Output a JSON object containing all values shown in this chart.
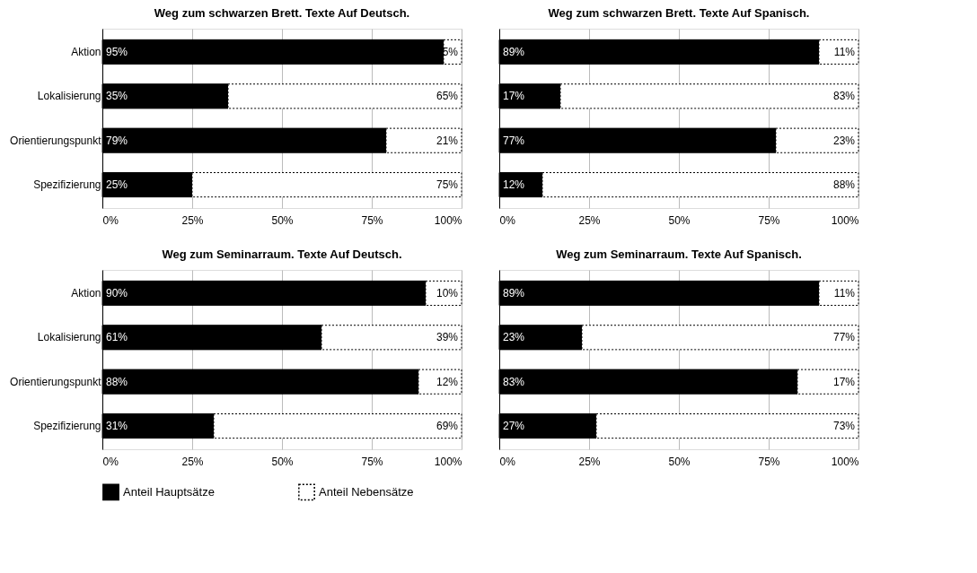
{
  "chart_data": [
    {
      "type": "bar",
      "title": "Weg zum schwarzen Brett. Texte Auf Deutsch.",
      "orientation": "horizontal",
      "stacked": true,
      "categories": [
        "Aktion",
        "Lokalisierung",
        "Orientierungspunkt",
        "Spezifizierung"
      ],
      "series": [
        {
          "name": "Anteil Hauptsätze",
          "color": "#000000",
          "values": [
            95,
            35,
            79,
            25
          ],
          "value_labels": [
            "95%",
            "35%",
            "79%",
            "25%"
          ]
        },
        {
          "name": "Anteil Nebensätze",
          "color": "#ffffff",
          "values": [
            5,
            65,
            21,
            75
          ],
          "value_labels": [
            "5%",
            "65%",
            "21%",
            "75%"
          ]
        }
      ],
      "xlim": [
        0,
        100
      ],
      "xticks": [
        {
          "value": 0,
          "label": "0%"
        },
        {
          "value": 25,
          "label": "25%"
        },
        {
          "value": 50,
          "label": "50%"
        },
        {
          "value": 75,
          "label": "75%"
        },
        {
          "value": 100,
          "label": "100%"
        }
      ],
      "grid": "x",
      "legend": "bottom"
    },
    {
      "type": "bar",
      "title": "Weg zum schwarzen Brett. Texte Auf Spanisch.",
      "orientation": "horizontal",
      "stacked": true,
      "categories": [
        "Aktion",
        "Lokalisierung",
        "Orientierungspunkt",
        "Spezifizierung"
      ],
      "series": [
        {
          "name": "Anteil Hauptsätze",
          "color": "#000000",
          "values": [
            89,
            17,
            77,
            12
          ],
          "value_labels": [
            "89%",
            "17%",
            "77%",
            "12%"
          ]
        },
        {
          "name": "Anteil Nebensätze",
          "color": "#ffffff",
          "values": [
            11,
            83,
            23,
            88
          ],
          "value_labels": [
            "11%",
            "83%",
            "23%",
            "88%"
          ]
        }
      ],
      "xlim": [
        0,
        100
      ],
      "xticks": [
        {
          "value": 0,
          "label": "0%"
        },
        {
          "value": 25,
          "label": "25%"
        },
        {
          "value": 50,
          "label": "50%"
        },
        {
          "value": 75,
          "label": "75%"
        },
        {
          "value": 100,
          "label": "100%"
        }
      ],
      "grid": "x",
      "legend": "bottom",
      "tick_labels": "x"
    },
    {
      "type": "bar",
      "title": "Weg zum Seminarraum. Texte Auf Deutsch.",
      "orientation": "horizontal",
      "stacked": true,
      "categories": [
        "Aktion",
        "Lokalisierung",
        "Orientierungspunkt",
        "Spezifizierung"
      ],
      "series": [
        {
          "name": "Anteil Hauptsätze",
          "color": "#000000",
          "values": [
            90,
            61,
            88,
            31
          ],
          "value_labels": [
            "90%",
            "61%",
            "88%",
            "31%"
          ]
        },
        {
          "name": "Anteil Nebensätze",
          "color": "#ffffff",
          "values": [
            10,
            39,
            12,
            69
          ],
          "value_labels": [
            "10%",
            "39%",
            "12%",
            "69%"
          ]
        }
      ],
      "xlim": [
        0,
        100
      ],
      "xticks": [
        {
          "value": 0,
          "label": "0%"
        },
        {
          "value": 25,
          "label": "25%"
        },
        {
          "value": 50,
          "label": "50%"
        },
        {
          "value": 75,
          "label": "75%"
        },
        {
          "value": 100,
          "label": "100%"
        }
      ],
      "grid": "x",
      "legend": "bottom"
    },
    {
      "type": "bar",
      "title": "Weg zum Seminarraum. Texte Auf Spanisch.",
      "orientation": "horizontal",
      "stacked": true,
      "categories": [
        "Aktion",
        "Lokalisierung",
        "Orientierungspunkt",
        "Spezifizierung"
      ],
      "series": [
        {
          "name": "Anteil Hauptsätze",
          "color": "#000000",
          "values": [
            89,
            23,
            83,
            27
          ],
          "value_labels": [
            "89%",
            "23%",
            "83%",
            "27%"
          ]
        },
        {
          "name": "Anteil Nebensätze",
          "color": "#ffffff",
          "values": [
            11,
            77,
            17,
            73
          ],
          "value_labels": [
            "11%",
            "77%",
            "17%",
            "73%"
          ]
        }
      ],
      "xlim": [
        0,
        100
      ],
      "xticks": [
        {
          "value": 0,
          "label": "0%"
        },
        {
          "value": 25,
          "label": "25%"
        },
        {
          "value": 50,
          "label": "50%"
        },
        {
          "value": 75,
          "label": "75%"
        },
        {
          "value": 100,
          "label": "100%"
        }
      ],
      "grid": "x",
      "legend": "bottom",
      "tick_labels": "x"
    }
  ]
}
